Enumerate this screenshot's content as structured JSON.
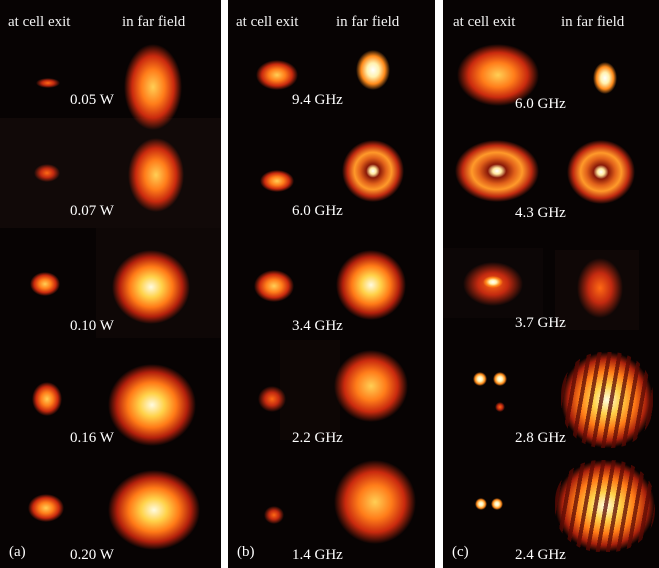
{
  "panels": [
    {
      "id": "a",
      "panel_label": "(a)",
      "header_left": "at cell exit",
      "header_right": "in far field",
      "rows": [
        "0.05 W",
        "0.07 W",
        "0.10 W",
        "0.16 W",
        "0.20 W"
      ]
    },
    {
      "id": "b",
      "panel_label": "(b)",
      "header_left": "at cell exit",
      "header_right": "in far field",
      "rows": [
        "9.4 GHz",
        "6.0 GHz",
        "3.4 GHz",
        "2.2 GHz",
        "1.4 GHz"
      ]
    },
    {
      "id": "c",
      "panel_label": "(c)",
      "header_left": "at cell exit",
      "header_right": "in far field",
      "rows": [
        "6.0 GHz",
        "4.3 GHz",
        "3.7 GHz",
        "2.8 GHz",
        "2.4 GHz"
      ]
    }
  ]
}
